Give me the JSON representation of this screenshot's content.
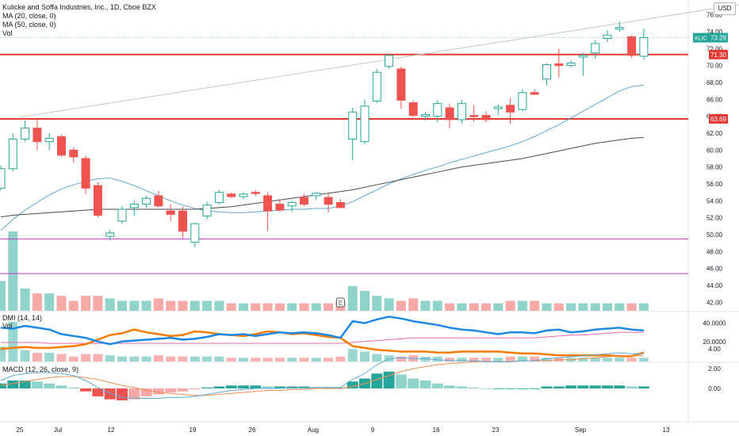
{
  "header": {
    "title": "Kulicke and Soffa Industries, Inc., 1D, Cboe BZX",
    "ma20": "MA (20, close, 0)",
    "ma50": "MA (50, close, 0)",
    "vol": "Vol",
    "currency": "USD"
  },
  "panes": {
    "dmi": {
      "label": "DMI (14, 14)",
      "sublabel": "Vol"
    },
    "macd": {
      "label": "MACD (12, 26, close, 9)"
    }
  },
  "price_axis_ticks": [
    "42.00",
    "44.00",
    "46.00",
    "48.00",
    "50.00",
    "52.00",
    "54.00",
    "56.00",
    "58.00",
    "60.00",
    "62.00",
    "64.00",
    "66.00",
    "68.00",
    "70.00",
    "72.00",
    "74.00",
    "76.00"
  ],
  "dmi_axis_ticks": [
    "40.0000",
    "20.0000"
  ],
  "macd_axis_ticks": [
    "4.00",
    "2.00",
    "0.00"
  ],
  "time_axis_labels": [
    "25",
    "Jul",
    "12",
    "19",
    "26",
    "Aug",
    "9",
    "16",
    "23",
    "Sep",
    "13"
  ],
  "badges": {
    "ticker": "KLIC",
    "last_price": "73.29",
    "level_upper": "71.30",
    "level_lower": "63.69"
  },
  "event_marker": "E",
  "colors": {
    "up": "#26a69a",
    "down": "#ef5350",
    "up_vol": "#8fd3cb",
    "down_vol": "#f7a9a7",
    "ma20": "#5fa8d3",
    "ma50": "#4a4a4a",
    "level_line": "#e53935",
    "magenta_line": "#c039c5",
    "trend_line": "#c8c8c8",
    "dmi_plus": "#1e88e5",
    "dmi_minus": "#f57c00",
    "adx": "#e86aa8",
    "macd_line": "#5fa8d3",
    "signal_line": "#f28c50",
    "last_badge": "#26a69a",
    "level_badge": "#e53935"
  },
  "chart_data": {
    "type": "candlestick",
    "title": "Kulicke and Soffa Industries, Inc., 1D, Cboe BZX",
    "ylim": [
      41,
      77
    ],
    "x_labels": [
      "25",
      "Jul",
      "12",
      "19",
      "26",
      "Aug",
      "9",
      "16",
      "23",
      "Sep",
      "13"
    ],
    "candles": [
      {
        "o": 55.5,
        "h": 58.2,
        "l": 55.2,
        "c": 57.8
      },
      {
        "o": 57.8,
        "h": 62.0,
        "l": 57.5,
        "c": 61.3
      },
      {
        "o": 61.3,
        "h": 63.5,
        "l": 61.0,
        "c": 62.6
      },
      {
        "o": 62.6,
        "h": 63.6,
        "l": 60.0,
        "c": 61.0
      },
      {
        "o": 61.0,
        "h": 62.0,
        "l": 60.0,
        "c": 61.4
      },
      {
        "o": 61.6,
        "h": 61.8,
        "l": 59.2,
        "c": 59.4
      },
      {
        "o": 60.0,
        "h": 60.3,
        "l": 58.5,
        "c": 59.2
      },
      {
        "o": 59.0,
        "h": 59.4,
        "l": 54.8,
        "c": 55.5
      },
      {
        "o": 55.8,
        "h": 56.2,
        "l": 52.0,
        "c": 52.3
      },
      {
        "o": 49.8,
        "h": 50.6,
        "l": 49.3,
        "c": 50.2
      },
      {
        "o": 51.6,
        "h": 53.4,
        "l": 51.3,
        "c": 53.0
      },
      {
        "o": 53.2,
        "h": 54.0,
        "l": 52.2,
        "c": 53.6
      },
      {
        "o": 53.6,
        "h": 54.6,
        "l": 53.2,
        "c": 54.3
      },
      {
        "o": 54.6,
        "h": 55.2,
        "l": 53.2,
        "c": 53.4
      },
      {
        "o": 52.8,
        "h": 53.6,
        "l": 51.6,
        "c": 52.4
      },
      {
        "o": 52.8,
        "h": 53.3,
        "l": 49.6,
        "c": 50.4
      },
      {
        "o": 49.1,
        "h": 51.4,
        "l": 48.5,
        "c": 51.3
      },
      {
        "o": 52.2,
        "h": 53.9,
        "l": 51.8,
        "c": 53.5
      },
      {
        "o": 53.8,
        "h": 55.3,
        "l": 53.6,
        "c": 55.0
      },
      {
        "o": 54.8,
        "h": 55.0,
        "l": 54.3,
        "c": 54.5
      },
      {
        "o": 54.5,
        "h": 55.0,
        "l": 54.2,
        "c": 54.8
      },
      {
        "o": 55.0,
        "h": 55.3,
        "l": 54.6,
        "c": 54.9
      },
      {
        "o": 54.6,
        "h": 55.0,
        "l": 50.4,
        "c": 52.8
      },
      {
        "o": 53.6,
        "h": 54.2,
        "l": 52.7,
        "c": 52.9
      },
      {
        "o": 53.4,
        "h": 54.0,
        "l": 52.7,
        "c": 53.8
      },
      {
        "o": 54.4,
        "h": 54.8,
        "l": 53.4,
        "c": 53.6
      },
      {
        "o": 54.6,
        "h": 55.0,
        "l": 54.1,
        "c": 54.9
      },
      {
        "o": 54.4,
        "h": 54.8,
        "l": 52.6,
        "c": 53.6
      },
      {
        "o": 53.8,
        "h": 54.2,
        "l": 53.1,
        "c": 53.2
      },
      {
        "o": 61.3,
        "h": 65.0,
        "l": 58.8,
        "c": 64.5
      },
      {
        "o": 61.0,
        "h": 66.0,
        "l": 60.7,
        "c": 65.2
      },
      {
        "o": 65.8,
        "h": 69.6,
        "l": 65.6,
        "c": 69.2
      },
      {
        "o": 69.9,
        "h": 71.3,
        "l": 69.6,
        "c": 71.2
      },
      {
        "o": 69.6,
        "h": 69.9,
        "l": 64.9,
        "c": 65.9
      },
      {
        "o": 65.6,
        "h": 65.9,
        "l": 63.9,
        "c": 64.1
      },
      {
        "o": 64.0,
        "h": 64.5,
        "l": 63.5,
        "c": 64.2
      },
      {
        "o": 64.0,
        "h": 65.9,
        "l": 63.3,
        "c": 65.5
      },
      {
        "o": 65.0,
        "h": 65.5,
        "l": 62.6,
        "c": 63.6
      },
      {
        "o": 63.6,
        "h": 65.9,
        "l": 63.1,
        "c": 65.5
      },
      {
        "o": 64.1,
        "h": 65.3,
        "l": 63.3,
        "c": 64.0
      },
      {
        "o": 64.1,
        "h": 64.6,
        "l": 63.3,
        "c": 63.6
      },
      {
        "o": 64.9,
        "h": 65.4,
        "l": 64.1,
        "c": 65.1
      },
      {
        "o": 65.3,
        "h": 66.2,
        "l": 63.1,
        "c": 64.5
      },
      {
        "o": 64.8,
        "h": 67.2,
        "l": 64.6,
        "c": 66.8
      },
      {
        "o": 66.8,
        "h": 67.2,
        "l": 66.5,
        "c": 66.6
      },
      {
        "o": 68.4,
        "h": 70.3,
        "l": 67.7,
        "c": 70.1
      },
      {
        "o": 70.2,
        "h": 72.0,
        "l": 68.6,
        "c": 70.0
      },
      {
        "o": 70.0,
        "h": 70.6,
        "l": 69.8,
        "c": 70.3
      },
      {
        "o": 71.0,
        "h": 71.5,
        "l": 68.8,
        "c": 71.2
      },
      {
        "o": 71.5,
        "h": 73.0,
        "l": 70.8,
        "c": 72.6
      },
      {
        "o": 73.2,
        "h": 74.2,
        "l": 72.8,
        "c": 73.6
      },
      {
        "o": 74.3,
        "h": 75.2,
        "l": 74.0,
        "c": 74.5
      },
      {
        "o": 73.4,
        "h": 73.6,
        "l": 70.9,
        "c": 71.2
      },
      {
        "o": 71.1,
        "h": 74.4,
        "l": 70.7,
        "c": 73.3
      }
    ],
    "series": [
      {
        "name": "MA (20, close, 0)",
        "values": [
          50.5,
          51.8,
          52.9,
          53.8,
          54.7,
          55.4,
          55.9,
          56.3,
          56.6,
          56.7,
          56.3,
          55.8,
          55.2,
          54.6,
          54.0,
          53.5,
          53.1,
          52.8,
          52.7,
          52.6,
          52.6,
          52.7,
          52.8,
          52.9,
          53.0,
          53.0,
          53.1,
          53.1,
          53.4,
          53.9,
          54.6,
          55.3,
          56.0,
          56.6,
          57.1,
          57.6,
          58.0,
          58.5,
          58.9,
          59.3,
          59.7,
          60.1,
          60.5,
          61.0,
          61.6,
          62.3,
          63.0,
          63.8,
          64.6,
          65.4,
          66.2,
          67.0,
          67.5,
          67.7
        ]
      },
      {
        "name": "MA (50, close, 0)",
        "values": [
          52.1,
          52.3,
          52.4,
          52.5,
          52.6,
          52.7,
          52.8,
          52.9,
          53.0,
          53.0,
          53.0,
          53.0,
          53.0,
          53.0,
          53.0,
          53.0,
          53.0,
          53.1,
          53.2,
          53.3,
          53.5,
          53.7,
          53.9,
          54.1,
          54.3,
          54.5,
          54.7,
          54.9,
          55.1,
          55.3,
          55.6,
          55.9,
          56.2,
          56.5,
          56.8,
          57.1,
          57.4,
          57.7,
          58.0,
          58.2,
          58.4,
          58.6,
          58.8,
          59.0,
          59.3,
          59.6,
          59.9,
          60.2,
          60.5,
          60.8,
          61.0,
          61.2,
          61.4,
          61.5
        ]
      },
      {
        "name": "Vol",
        "values": [
          1.2,
          3.2,
          0.9,
          0.7,
          0.7,
          0.6,
          0.4,
          0.6,
          0.6,
          0.5,
          0.4,
          0.4,
          0.4,
          0.5,
          0.4,
          0.4,
          0.4,
          0.4,
          0.4,
          0.3,
          0.3,
          0.3,
          0.3,
          0.3,
          0.3,
          0.3,
          0.3,
          0.3,
          0.4,
          1.0,
          0.8,
          0.6,
          0.5,
          0.4,
          0.5,
          0.4,
          0.4,
          0.3,
          0.3,
          0.3,
          0.3,
          0.3,
          0.4,
          0.4,
          0.4,
          0.3,
          0.3,
          0.3,
          0.3,
          0.3,
          0.3,
          0.3,
          0.3,
          0.3
        ]
      }
    ],
    "levels": [
      71.3,
      63.69,
      49.5,
      45.4
    ],
    "dmi": {
      "plus_di": [
        35,
        34,
        37,
        35,
        33,
        28,
        26,
        24,
        20,
        17,
        20,
        21,
        22,
        23,
        24,
        22,
        23,
        25,
        28,
        27,
        28,
        26,
        28,
        30,
        29,
        30,
        29,
        27,
        24,
        42,
        40,
        44,
        47,
        45,
        42,
        40,
        38,
        35,
        33,
        32,
        30,
        28,
        30,
        30,
        29,
        32,
        33,
        30,
        31,
        33,
        34,
        35,
        33,
        32
      ],
      "minus_di": [
        12,
        13,
        14,
        13,
        13,
        14,
        15,
        17,
        22,
        27,
        29,
        33,
        30,
        28,
        26,
        27,
        31,
        30,
        28,
        27,
        26,
        28,
        31,
        30,
        28,
        29,
        27,
        25,
        24,
        15,
        13,
        11,
        10,
        9,
        9,
        9,
        8,
        8,
        9,
        9,
        9,
        9,
        8,
        7,
        7,
        6,
        5,
        5,
        5,
        5,
        5,
        4,
        4,
        8
      ],
      "adx": [
        19,
        19,
        19,
        19,
        18,
        18,
        18,
        18,
        18,
        18,
        18,
        18,
        18,
        18,
        18,
        18,
        18,
        18,
        18,
        18,
        18,
        18,
        18,
        18,
        18,
        18,
        18,
        18,
        18,
        19,
        20,
        21,
        22,
        23,
        24,
        24,
        24,
        24,
        24,
        24,
        24,
        24,
        24,
        24,
        24,
        25,
        26,
        27,
        27,
        28,
        29,
        30,
        30,
        30
      ]
    },
    "macd": {
      "macd": [
        0.8,
        1.3,
        1.5,
        1.6,
        1.6,
        1.5,
        1.3,
        0.8,
        0.1,
        -0.5,
        -0.9,
        -1.0,
        -1.0,
        -1.0,
        -0.9,
        -0.9,
        -0.8,
        -0.6,
        -0.4,
        -0.2,
        -0.1,
        0.0,
        0.0,
        0.0,
        0.1,
        0.1,
        0.1,
        0.1,
        0.1,
        0.9,
        1.5,
        2.4,
        3.0,
        3.1,
        3.0,
        3.0,
        2.9,
        2.8,
        2.8,
        2.8,
        2.7,
        2.7,
        2.7,
        2.8,
        2.8,
        3.0,
        3.1,
        3.2,
        3.3,
        3.4,
        3.5,
        3.6,
        3.5,
        3.5
      ],
      "signal": [
        0.3,
        0.5,
        0.7,
        0.9,
        1.1,
        1.2,
        1.2,
        1.1,
        0.9,
        0.6,
        0.3,
        0.1,
        -0.2,
        -0.4,
        -0.5,
        -0.6,
        -0.7,
        -0.7,
        -0.6,
        -0.5,
        -0.4,
        -0.3,
        -0.2,
        -0.2,
        -0.1,
        -0.1,
        0.0,
        0.0,
        0.0,
        0.2,
        0.5,
        0.9,
        1.3,
        1.7,
        2.0,
        2.2,
        2.4,
        2.5,
        2.6,
        2.7,
        2.7,
        2.7,
        2.7,
        2.8,
        2.8,
        2.8,
        2.9,
        2.9,
        3.0,
        3.1,
        3.2,
        3.3,
        3.3,
        3.3
      ],
      "hist": [
        0.5,
        0.8,
        0.8,
        0.7,
        0.5,
        0.3,
        0.1,
        -0.3,
        -0.8,
        -1.1,
        -1.2,
        -1.1,
        -0.8,
        -0.6,
        -0.4,
        -0.3,
        -0.1,
        0.1,
        0.2,
        0.3,
        0.3,
        0.3,
        0.2,
        0.2,
        0.2,
        0.2,
        0.1,
        0.1,
        0.1,
        0.7,
        1.0,
        1.5,
        1.7,
        1.4,
        1.0,
        0.8,
        0.5,
        0.3,
        0.2,
        0.1,
        0.0,
        0.0,
        0.0,
        0.0,
        0.0,
        0.2,
        0.2,
        0.3,
        0.3,
        0.3,
        0.3,
        0.3,
        0.2,
        0.2
      ]
    }
  }
}
